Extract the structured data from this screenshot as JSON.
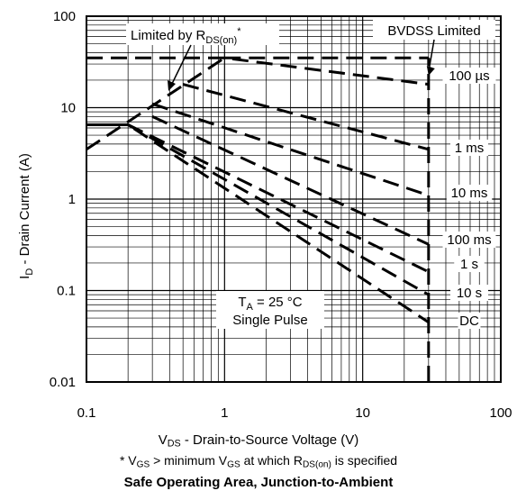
{
  "chart_data": {
    "type": "line",
    "title": "Safe Operating Area, Junction-to-Ambient",
    "xlabel": {
      "main": "V",
      "sub": "DS",
      "rest": " - Drain-to-Source Voltage (V)"
    },
    "ylabel": {
      "main": "I",
      "sub": "D",
      "rest": " - Drain Current (A)"
    },
    "x_scale": "log",
    "y_scale": "log",
    "xlim": [
      0.1,
      100
    ],
    "ylim": [
      0.01,
      100
    ],
    "x_ticks": [
      "0.1",
      "1",
      "10",
      "100"
    ],
    "y_ticks": [
      "0.01",
      "0.1",
      "1",
      "10",
      "100"
    ],
    "grid": true,
    "limit_lines": [
      {
        "name": "Limited by R_DS(on)",
        "x": [
          0.1,
          1
        ],
        "y": [
          3.5,
          35
        ]
      },
      {
        "name": "BVDSS Limited",
        "x": [
          30,
          30
        ],
        "y": [
          0.01,
          35
        ]
      }
    ],
    "series": [
      {
        "name": "100 µs",
        "x": [
          0.1,
          1,
          30
        ],
        "y": [
          35,
          35,
          18
        ]
      },
      {
        "name": "1 ms",
        "x": [
          0.5,
          30
        ],
        "y": [
          18,
          3.5
        ]
      },
      {
        "name": "10 ms",
        "x": [
          0.3,
          30
        ],
        "y": [
          11,
          1.1
        ]
      },
      {
        "name": "100 ms",
        "x": [
          0.3,
          30
        ],
        "y": [
          8,
          0.32
        ]
      },
      {
        "name": "1 s",
        "x": [
          0.2,
          30
        ],
        "y": [
          6.5,
          0.16
        ]
      },
      {
        "name": "10 s",
        "x": [
          0.2,
          30
        ],
        "y": [
          6.5,
          0.09
        ]
      },
      {
        "name": "DC",
        "x": [
          0.1,
          0.2,
          30
        ],
        "y": [
          6.5,
          6.5,
          0.045
        ]
      }
    ],
    "labels": {
      "rdson": {
        "main": "Limited by R",
        "sub": "DS(on)",
        "sup": "*"
      },
      "bvdss": "BVDSS Limited",
      "conditions_line1": {
        "main": "T",
        "sub": "A",
        "rest": " = 25 °C"
      },
      "conditions_line2": "Single Pulse"
    },
    "footnote": {
      "p1": "* V",
      "s1": "GS",
      "p2": " >  minimum V",
      "s2": "GS",
      "p3": " at which R",
      "s3": "DS(on)",
      "p4": " is specified"
    }
  }
}
